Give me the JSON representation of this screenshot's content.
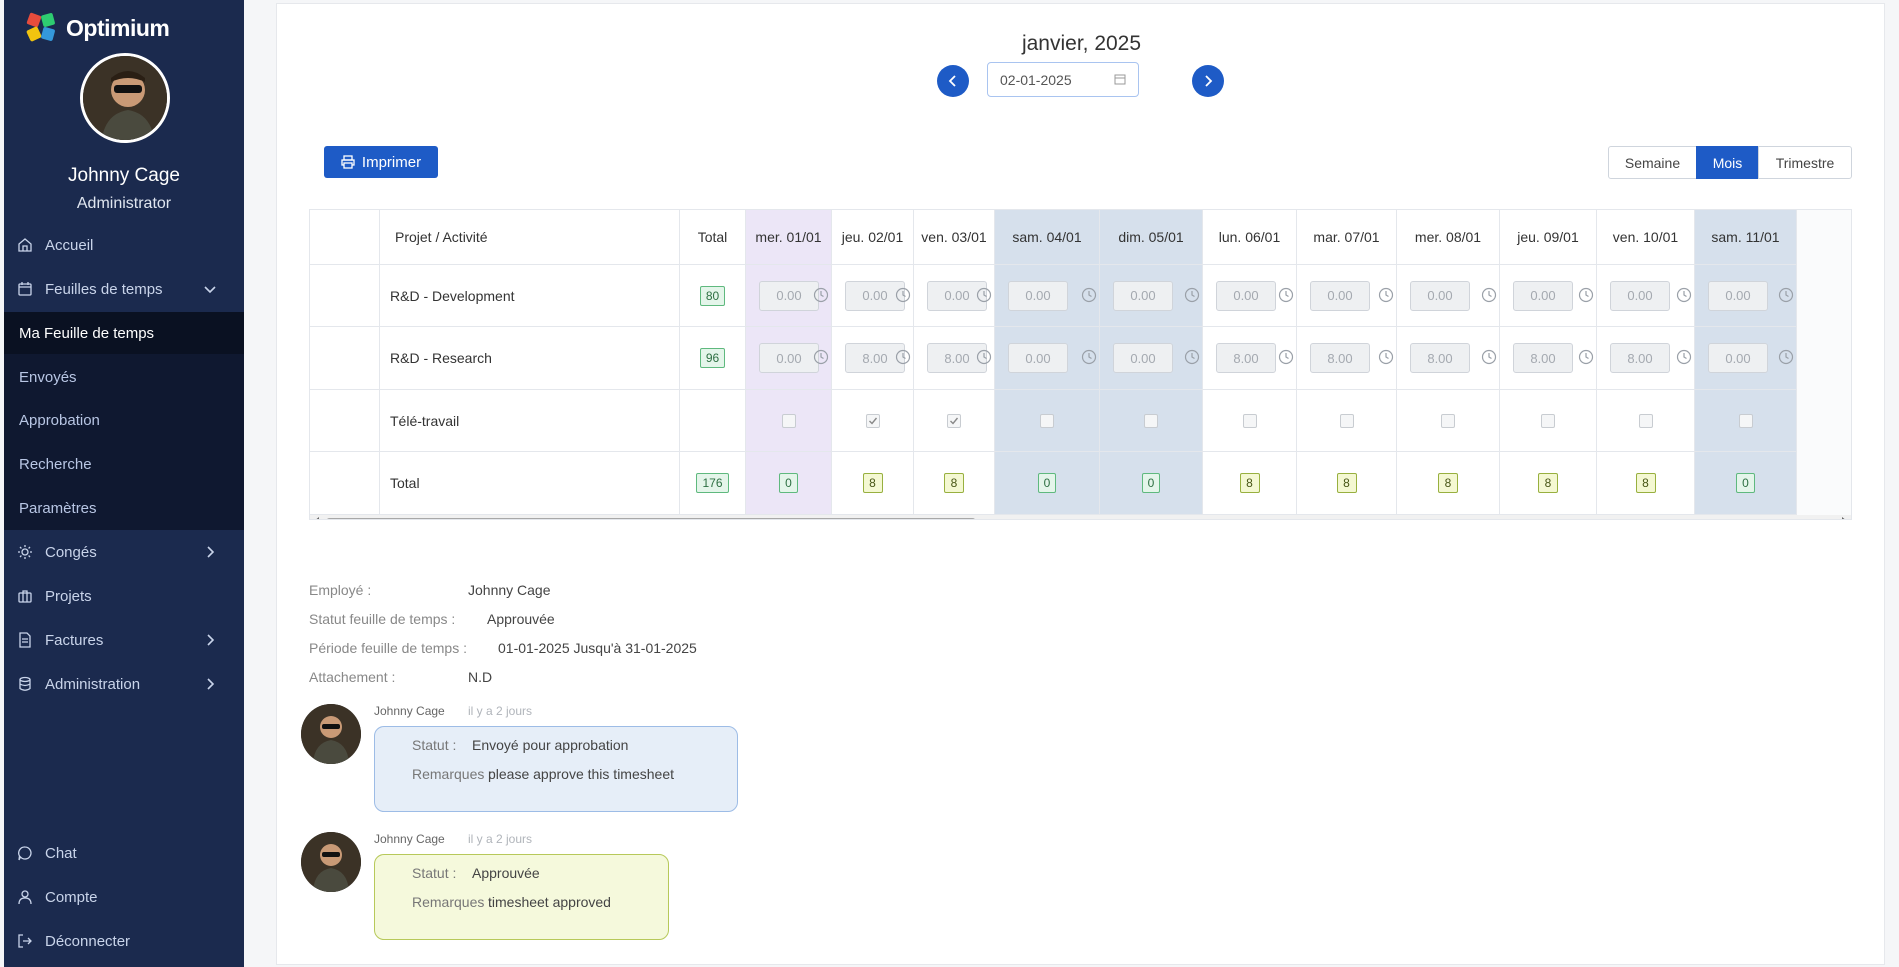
{
  "app": {
    "name": "Optimium"
  },
  "user": {
    "name": "Johnny Cage",
    "role": "Administrator"
  },
  "sidebar": {
    "accueil": "Accueil",
    "feuilles": "Feuilles de temps",
    "sub": [
      "Ma Feuille de temps",
      "Envoyés",
      "Approbation",
      "Recherche",
      "Paramètres"
    ],
    "conges": "Congés",
    "projets": "Projets",
    "factures": "Factures",
    "administration": "Administration",
    "chat": "Chat",
    "compte": "Compte",
    "deconnecter": "Déconnecter"
  },
  "header": {
    "month": "janvier, 2025",
    "date_value": "02-01-2025"
  },
  "toolbar": {
    "print_label": "Imprimer",
    "views": [
      "Semaine",
      "Mois",
      "Trimestre"
    ],
    "active_view": "Mois"
  },
  "table": {
    "col_project": "Projet / Activité",
    "col_total": "Total",
    "days": [
      "mer. 01/01",
      "jeu. 02/01",
      "ven. 03/01",
      "sam. 04/01",
      "dim. 05/01",
      "lun. 06/01",
      "mar. 07/01",
      "mer. 08/01",
      "jeu. 09/01",
      "ven. 10/01",
      "sam. 11/01"
    ],
    "day_kind": [
      "today",
      "wd",
      "wd",
      "we",
      "we",
      "wd",
      "wd",
      "wd",
      "wd",
      "wd",
      "we"
    ],
    "rows": [
      {
        "label": "R&D - Development",
        "total": "80",
        "values": [
          "0.00",
          "0.00",
          "0.00",
          "0.00",
          "0.00",
          "0.00",
          "0.00",
          "0.00",
          "0.00",
          "0.00",
          "0.00"
        ]
      },
      {
        "label": "R&D - Research",
        "total": "96",
        "values": [
          "0.00",
          "8.00",
          "8.00",
          "0.00",
          "0.00",
          "8.00",
          "8.00",
          "8.00",
          "8.00",
          "8.00",
          "0.00"
        ]
      }
    ],
    "teletravail": {
      "label": "Télé-travail",
      "checked": [
        false,
        true,
        true,
        false,
        false,
        false,
        false,
        false,
        false,
        false,
        false
      ]
    },
    "total_row": {
      "label": "Total",
      "total": "176",
      "values": [
        "0",
        "8",
        "8",
        "0",
        "0",
        "8",
        "8",
        "8",
        "8",
        "8",
        "0"
      ]
    }
  },
  "info": {
    "employe_label": "Employé :",
    "employe_value": "Johnny Cage",
    "statut_label": "Statut feuille de temps :",
    "statut_value": "Approuvée",
    "periode_label": "Période feuille de temps :",
    "periode_value": "01-01-2025 Jusqu'à 31-01-2025",
    "attachement_label": "Attachement :",
    "attachement_value": "N.D"
  },
  "comments": [
    {
      "author": "Johnny Cage",
      "time": "il y a 2 jours",
      "statut_label": "Statut :",
      "statut": "Envoyé pour approbation",
      "remarques_label": "Remarques :",
      "remarques": "please approve this timesheet",
      "color": "#e6eef8",
      "border": "#9dbce6"
    },
    {
      "author": "Johnny Cage",
      "time": "il y a 2 jours",
      "statut_label": "Statut :",
      "statut": "Approuvée",
      "remarques_label": "Remarques :",
      "remarques": "timesheet approved",
      "color": "#f5f9dc",
      "border": "#b7c95a"
    }
  ],
  "colors": {
    "sidebar": "#1b2a4e",
    "accent": "#1e5bc6"
  }
}
